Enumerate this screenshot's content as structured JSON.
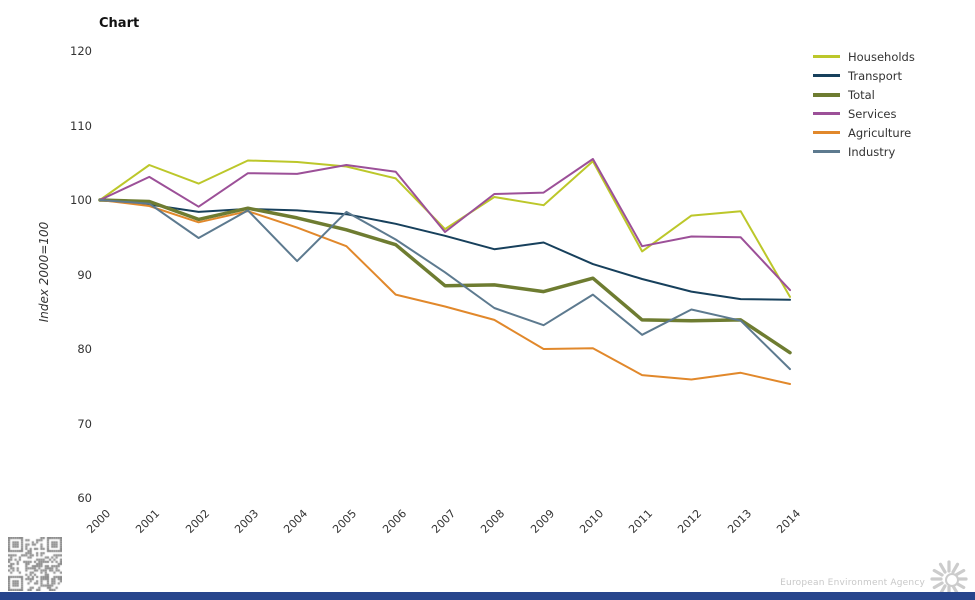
{
  "chart_data": {
    "type": "line",
    "title": "Chart",
    "ylabel": "Index 2000=100",
    "x": [
      2000,
      2001,
      2002,
      2003,
      2004,
      2005,
      2006,
      2007,
      2008,
      2009,
      2010,
      2011,
      2012,
      2013,
      2014
    ],
    "ylim": [
      60,
      120
    ],
    "yticks": [
      120,
      110,
      100,
      90,
      80,
      70,
      60
    ],
    "grid": false,
    "legend_position": "top-right",
    "series": [
      {
        "name": "Households",
        "color": "#bcc72a",
        "thick": false,
        "values": [
          100,
          104.7,
          102.2,
          105.3,
          105.1,
          104.5,
          102.9,
          96.1,
          100.4,
          99.3,
          105.2,
          93.1,
          97.9,
          98.5,
          87.0
        ]
      },
      {
        "name": "Transport",
        "color": "#17405c",
        "thick": false,
        "values": [
          100,
          99.4,
          98.4,
          98.8,
          98.6,
          98.1,
          96.8,
          95.2,
          93.4,
          94.3,
          91.4,
          89.4,
          87.7,
          86.7,
          86.6
        ]
      },
      {
        "name": "Total",
        "color": "#6e7c31",
        "thick": true,
        "values": [
          100,
          99.8,
          97.4,
          98.9,
          97.6,
          96.0,
          94.0,
          88.5,
          88.6,
          87.7,
          89.5,
          83.9,
          83.8,
          83.9,
          79.5
        ]
      },
      {
        "name": "Services",
        "color": "#9c5098",
        "thick": false,
        "values": [
          100,
          103.1,
          99.1,
          103.6,
          103.5,
          104.7,
          103.8,
          95.7,
          100.8,
          101.0,
          105.5,
          93.8,
          95.1,
          95.0,
          87.9
        ]
      },
      {
        "name": "Agriculture",
        "color": "#e1882b",
        "thick": false,
        "values": [
          100,
          99.2,
          97.0,
          98.5,
          96.3,
          93.8,
          87.3,
          85.7,
          83.9,
          80.0,
          80.1,
          76.5,
          75.9,
          76.8,
          75.3
        ]
      },
      {
        "name": "Industry",
        "color": "#5d7a8f",
        "thick": false,
        "values": [
          100,
          99.5,
          94.9,
          98.6,
          91.8,
          98.4,
          94.7,
          90.3,
          85.5,
          83.2,
          87.3,
          81.9,
          85.3,
          83.8,
          77.3
        ]
      }
    ]
  },
  "footer": {
    "agency": "European Environment Agency"
  },
  "icons": {
    "qr": "qr-code",
    "logo": "eea-sunburst-logo"
  },
  "colors": {
    "text": "#333333",
    "footer_text": "#c8c8c8",
    "logo": "#cccccc",
    "qr": "#8a8a8a",
    "bottom_bar": "#27458c",
    "background": "#ffffff"
  }
}
